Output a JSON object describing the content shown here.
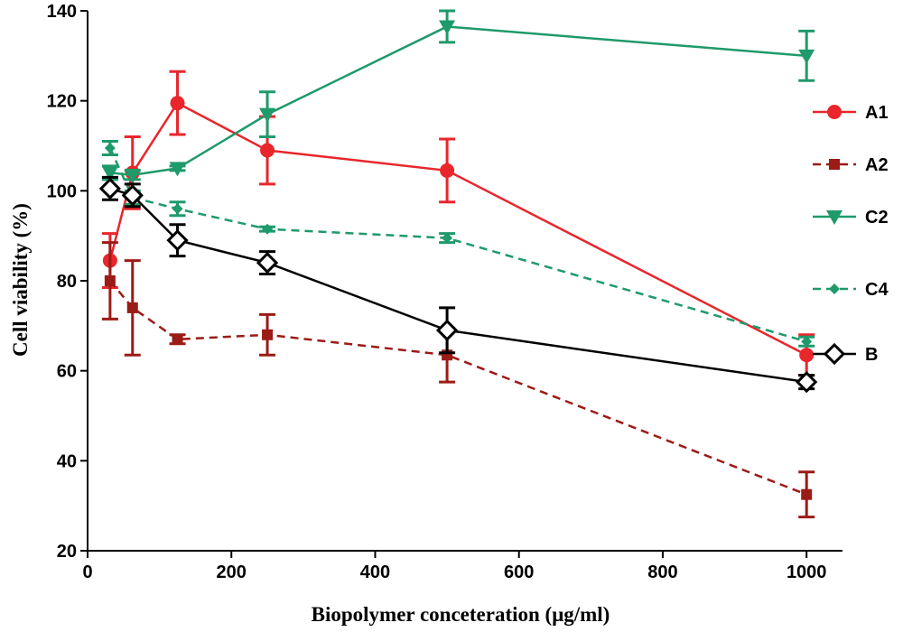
{
  "chart_data": {
    "type": "line",
    "xlabel": "Biopolymer conceteration (μg/ml)",
    "ylabel": "Cell viability (%)",
    "xlim": [
      0,
      1050
    ],
    "ylim": [
      20,
      140
    ],
    "xticks": [
      0,
      200,
      400,
      600,
      800,
      1000
    ],
    "yticks": [
      20,
      40,
      60,
      80,
      100,
      120,
      140
    ],
    "xtick_labels": [
      "0",
      "200",
      "400",
      "600",
      "800",
      "1000"
    ],
    "ytick_labels": [
      "20",
      "40",
      "60",
      "80",
      "100",
      "120",
      "140"
    ],
    "grid": false,
    "legend_position": "right",
    "x": [
      31.25,
      62.5,
      125,
      250,
      500,
      1000
    ],
    "series": [
      {
        "name": "A1",
        "color": "#e8262b",
        "marker": "circle",
        "dash": false,
        "values": [
          84.5,
          104,
          119.5,
          109,
          104.5,
          63.5
        ],
        "errors": [
          6,
          8,
          7,
          7.5,
          7,
          4.5
        ]
      },
      {
        "name": "A2",
        "color": "#9b1b17",
        "marker": "square",
        "dash": true,
        "values": [
          80,
          74,
          67,
          68,
          63.5,
          32.5
        ],
        "errors": [
          8.5,
          10.5,
          1,
          4.5,
          6,
          5
        ]
      },
      {
        "name": "C2",
        "color": "#1f9a6a",
        "marker": "triangle-down",
        "dash": false,
        "values": [
          104,
          103.5,
          105,
          117,
          136.5,
          130
        ],
        "errors": [
          1.5,
          1,
          0.5,
          5,
          3.5,
          5.5
        ]
      },
      {
        "name": "C4",
        "color": "#1f9a6a",
        "marker": "diamond-small",
        "dash": true,
        "values": [
          109.5,
          98.5,
          96,
          91.5,
          89.5,
          66.5
        ],
        "errors": [
          1.5,
          1.5,
          1.5,
          0.5,
          1,
          1
        ]
      },
      {
        "name": "B",
        "color": "#000000",
        "marker": "diamond-open",
        "dash": false,
        "values": [
          100.5,
          99,
          89,
          84,
          69,
          57.5
        ],
        "errors": [
          2.5,
          2.5,
          3.5,
          2.5,
          5,
          1.5
        ]
      }
    ]
  }
}
